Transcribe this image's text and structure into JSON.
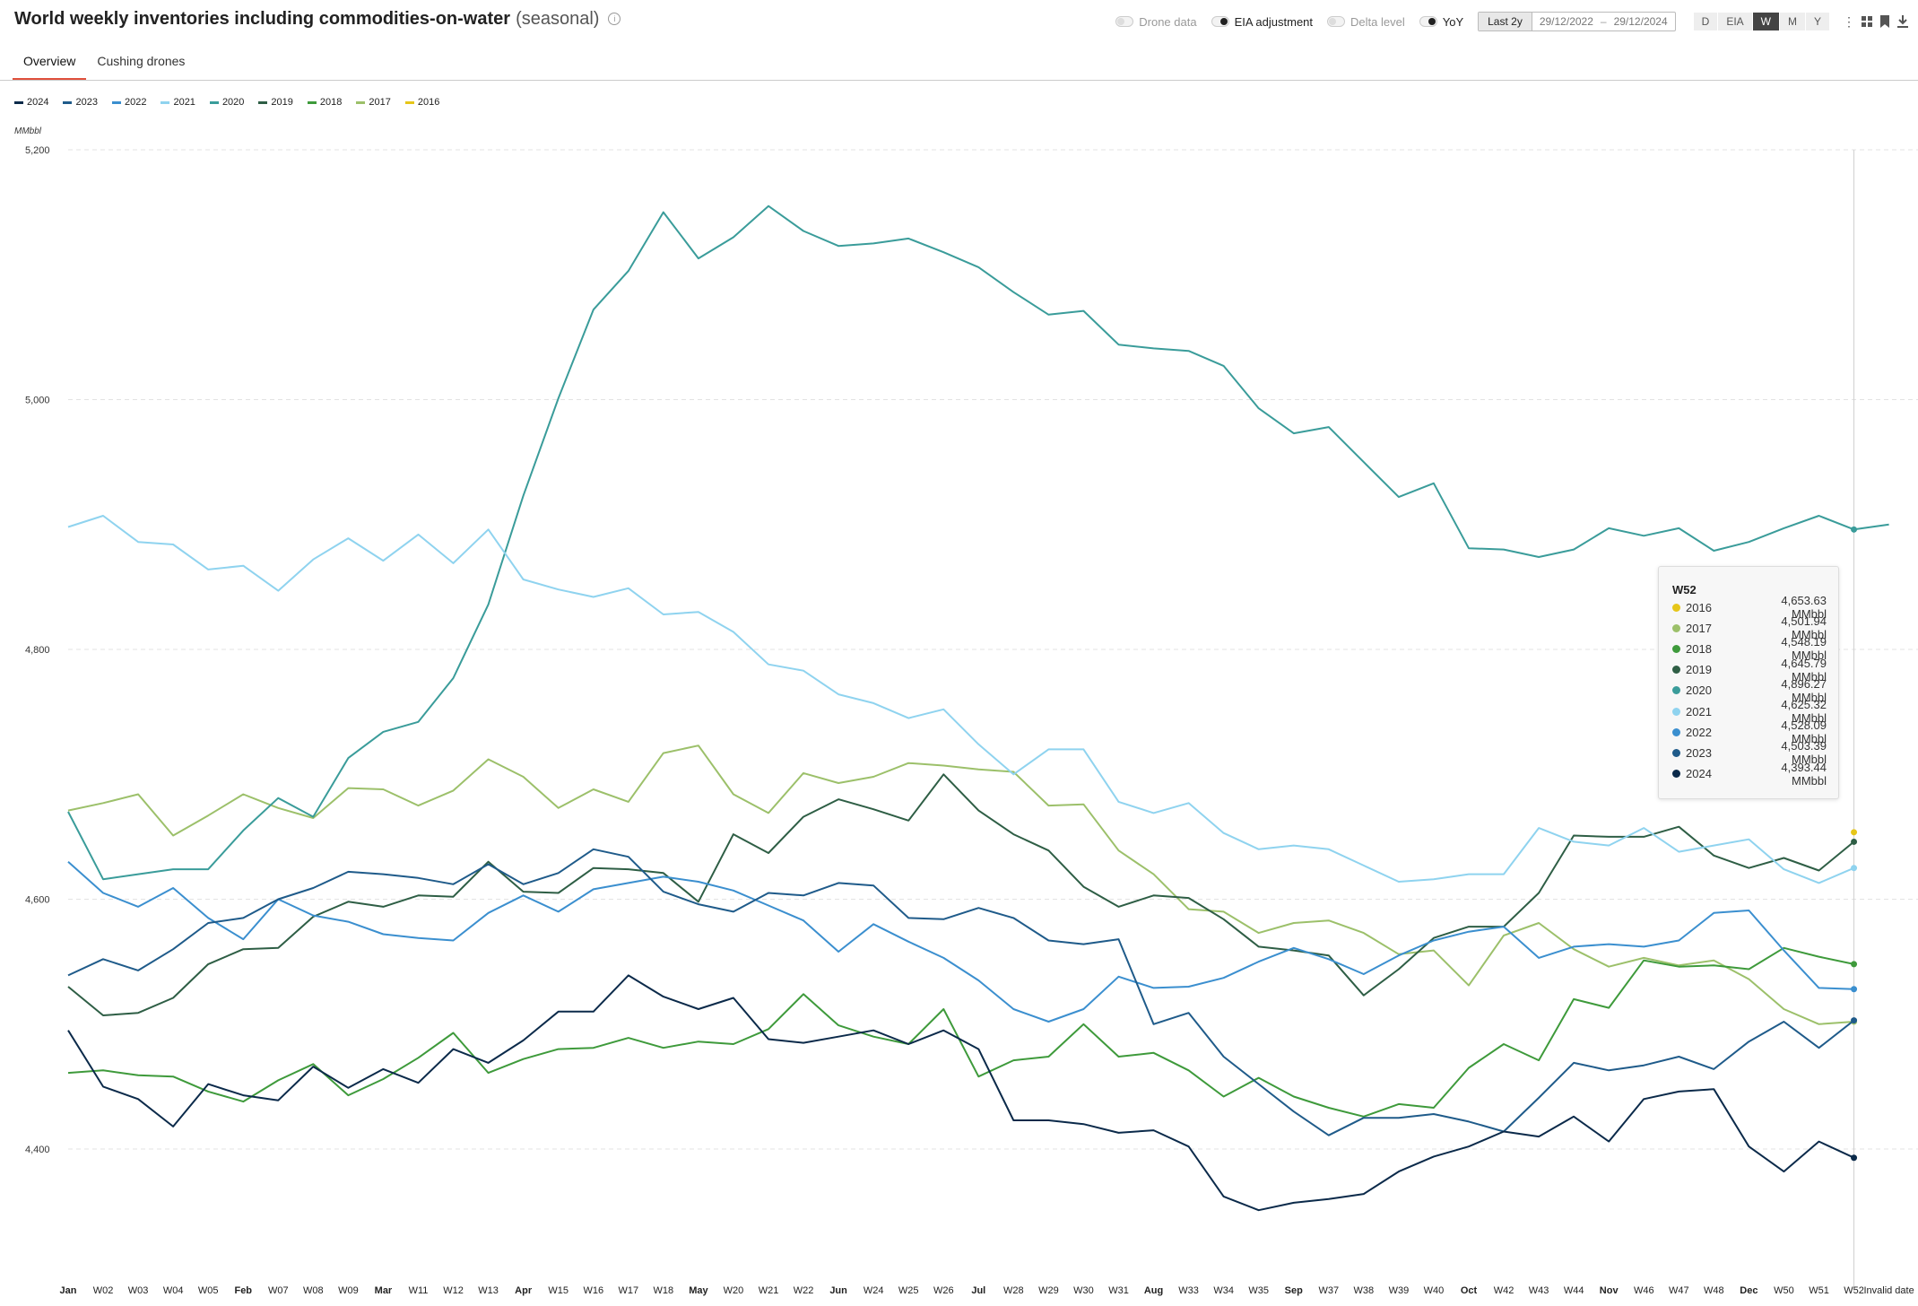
{
  "header": {
    "title": "World weekly inventories including commodities-on-water",
    "subtitle": "(seasonal)",
    "info_icon": "info-icon",
    "toggles": [
      {
        "label": "Drone data",
        "on": false
      },
      {
        "label": "EIA adjustment",
        "on": true
      },
      {
        "label": "Delta level",
        "on": false
      },
      {
        "label": "YoY",
        "on": true
      }
    ],
    "range": {
      "preset": "Last 2y",
      "from": "29/12/2022",
      "sep": "–",
      "to": "29/12/2024"
    },
    "granularity": [
      "D",
      "EIA",
      "W",
      "M",
      "Y"
    ],
    "granularity_active": "W",
    "tools": [
      "more-vertical-icon",
      "grid-icon",
      "bookmark-icon",
      "download-icon"
    ]
  },
  "tabs": [
    {
      "label": "Overview",
      "active": true
    },
    {
      "label": "Cushing drones",
      "active": false
    }
  ],
  "unit": "MMbbl",
  "tooltip": {
    "title": "W52",
    "rows": [
      {
        "year": "2016",
        "value": "4,653.63 MMbbl",
        "color": "#e6c619"
      },
      {
        "year": "2017",
        "value": "4,501.94 MMbbl",
        "color": "#9cc06a"
      },
      {
        "year": "2018",
        "value": "4,548.19 MMbbl",
        "color": "#3e9a3b"
      },
      {
        "year": "2019",
        "value": "4,645.79 MMbbl",
        "color": "#2e5e45"
      },
      {
        "year": "2020",
        "value": "4,896.27 MMbbl",
        "color": "#3a9c9a"
      },
      {
        "year": "2021",
        "value": "4,625.32 MMbbl",
        "color": "#8fd3ef"
      },
      {
        "year": "2022",
        "value": "4,528.09 MMbbl",
        "color": "#3b8fcf"
      },
      {
        "year": "2023",
        "value": "4,503.39 MMbbl",
        "color": "#1f5b8a"
      },
      {
        "year": "2024",
        "value": "4,393.44 MMbbl",
        "color": "#0b2a4a"
      }
    ]
  },
  "chart_data": {
    "type": "line",
    "title": "World weekly inventories including commodities-on-water",
    "ylabel": "MMbbl",
    "ylim": [
      4300,
      5200
    ],
    "yticks": [
      4400,
      4600,
      4800,
      5000,
      5200
    ],
    "ytick_labels": [
      "4,400",
      "4,600",
      "4,800",
      "5,000",
      "5,200"
    ],
    "grid": "horizontal dashed",
    "legend_position": "top-left",
    "categories": [
      "Jan",
      "W02",
      "W03",
      "W04",
      "W05",
      "Feb",
      "W07",
      "W08",
      "W09",
      "Mar",
      "W11",
      "W12",
      "W13",
      "Apr",
      "W15",
      "W16",
      "W17",
      "W18",
      "May",
      "W20",
      "W21",
      "W22",
      "Jun",
      "W24",
      "W25",
      "W26",
      "Jul",
      "W28",
      "W29",
      "W30",
      "W31",
      "Aug",
      "W33",
      "W34",
      "W35",
      "Sep",
      "W37",
      "W38",
      "W39",
      "W40",
      "Oct",
      "W42",
      "W43",
      "W44",
      "Nov",
      "W46",
      "W47",
      "W48",
      "Dec",
      "W50",
      "W51",
      "W52",
      "Invalid date"
    ],
    "bold_categories": [
      "Jan",
      "Feb",
      "Mar",
      "Apr",
      "May",
      "Jun",
      "Jul",
      "Aug",
      "Sep",
      "Oct",
      "Nov",
      "Dec"
    ],
    "series": [
      {
        "name": "2024",
        "color": "#0b2a4a",
        "values": [
          4495,
          4450,
          4440,
          4418,
          4452,
          4443,
          4439,
          4466,
          4449,
          4464,
          4453,
          4480,
          4469,
          4487,
          4510,
          4510,
          4539,
          4522,
          4512,
          4521,
          4488,
          4485,
          4490,
          4495,
          4484,
          4495,
          4480,
          4423,
          4423,
          4420,
          4413,
          4415,
          4402,
          4362,
          4351,
          4357,
          4360,
          4364,
          4382,
          4394,
          4402,
          4414,
          4410,
          4426,
          4406,
          4440,
          4446,
          4448,
          4402,
          4382,
          4406,
          4393,
          null
        ]
      },
      {
        "name": "2023",
        "color": "#1f5b8a",
        "values": [
          4539,
          4552,
          4543,
          4560,
          4581,
          4585,
          4600,
          4609,
          4622,
          4620,
          4617,
          4612,
          4628,
          4612,
          4621,
          4640,
          4634,
          4606,
          4596,
          4590,
          4605,
          4603,
          4613,
          4611,
          4585,
          4584,
          4593,
          4585,
          4567,
          4564,
          4568,
          4500,
          4509,
          4474,
          4452,
          4430,
          4411,
          4425,
          4425,
          4428,
          4422,
          4414,
          4441,
          4469,
          4463,
          4467,
          4474,
          4464,
          4486,
          4502,
          4481,
          4503,
          null
        ]
      },
      {
        "name": "2022",
        "color": "#3b8fcf",
        "values": [
          4630,
          4605,
          4594,
          4609,
          4585,
          4568,
          4600,
          4587,
          4582,
          4572,
          4569,
          4567,
          4589,
          4603,
          4590,
          4608,
          4613,
          4618,
          4614,
          4607,
          4595,
          4583,
          4558,
          4580,
          4566,
          4553,
          4535,
          4512,
          4502,
          4512,
          4538,
          4529,
          4530,
          4537,
          4550,
          4561,
          4552,
          4540,
          4555,
          4567,
          4574,
          4578,
          4553,
          4562,
          4564,
          4562,
          4567,
          4589,
          4591,
          4559,
          4529,
          4528,
          null
        ]
      },
      {
        "name": "2021",
        "color": "#8fd3ef",
        "values": [
          4898,
          4907,
          4886,
          4884,
          4864,
          4867,
          4847,
          4872,
          4889,
          4871,
          4892,
          4869,
          4896,
          4856,
          4848,
          4842,
          4849,
          4828,
          4830,
          4814,
          4788,
          4783,
          4764,
          4757,
          4745,
          4752,
          4724,
          4700,
          4720,
          4720,
          4678,
          4669,
          4677,
          4653,
          4640,
          4643,
          4640,
          4627,
          4614,
          4616,
          4620,
          4620,
          4657,
          4646,
          4643,
          4657,
          4638,
          4643,
          4648,
          4624,
          4613,
          4625,
          null
        ]
      },
      {
        "name": "2020",
        "color": "#3a9c9a",
        "values": [
          4670,
          4616,
          4620,
          4624,
          4624,
          4655,
          4681,
          4666,
          4713,
          4734,
          4742,
          4777,
          4836,
          4923,
          5001,
          5072,
          5103,
          5150,
          5113,
          5130,
          5155,
          5135,
          5123,
          5125,
          5129,
          5118,
          5106,
          5086,
          5068,
          5071,
          5044,
          5041,
          5039,
          5027,
          4993,
          4973,
          4978,
          4950,
          4922,
          4933,
          4881,
          4880,
          4874,
          4880,
          4897,
          4891,
          4897,
          4879,
          4886,
          4897,
          4907,
          4896,
          4900
        ]
      },
      {
        "name": "2019",
        "color": "#2e5e45",
        "values": [
          4530,
          4507,
          4509,
          4521,
          4548,
          4560,
          4561,
          4586,
          4598,
          4594,
          4603,
          4602,
          4630,
          4606,
          4605,
          4625,
          4624,
          4621,
          4598,
          4652,
          4637,
          4666,
          4680,
          4672,
          4663,
          4700,
          4671,
          4652,
          4639,
          4610,
          4594,
          4603,
          4601,
          4584,
          4562,
          4559,
          4555,
          4523,
          4544,
          4569,
          4578,
          4578,
          4605,
          4651,
          4650,
          4650,
          4658,
          4635,
          4625,
          4633,
          4623,
          4646,
          null
        ]
      },
      {
        "name": "2018",
        "color": "#3e9a3b",
        "values": [
          4461,
          4463,
          4459,
          4458,
          4446,
          4438,
          4455,
          4468,
          4443,
          4456,
          4473,
          4493,
          4461,
          4472,
          4480,
          4481,
          4489,
          4481,
          4486,
          4484,
          4496,
          4524,
          4499,
          4490,
          4484,
          4512,
          4458,
          4471,
          4474,
          4500,
          4474,
          4477,
          4463,
          4442,
          4457,
          4442,
          4433,
          4426,
          4436,
          4433,
          4465,
          4484,
          4471,
          4520,
          4513,
          4551,
          4546,
          4547,
          4544,
          4561,
          4554,
          4548,
          null
        ]
      },
      {
        "name": "2017",
        "color": "#9cc06a",
        "values": [
          4671,
          4677,
          4684,
          4651,
          4667,
          4684,
          4673,
          4665,
          4689,
          4688,
          4675,
          4687,
          4712,
          4698,
          4673,
          4688,
          4678,
          4717,
          4723,
          4684,
          4669,
          4701,
          4693,
          4698,
          4709,
          4707,
          4704,
          4702,
          4675,
          4676,
          4639,
          4620,
          4592,
          4590,
          4573,
          4581,
          4583,
          4573,
          4556,
          4559,
          4531,
          4571,
          4581,
          4560,
          4546,
          4553,
          4547,
          4551,
          4536,
          4512,
          4500,
          4502,
          null
        ]
      },
      {
        "name": "2016",
        "color": "#e6c619",
        "values": [
          null,
          null,
          null,
          null,
          null,
          null,
          null,
          null,
          null,
          null,
          null,
          null,
          null,
          null,
          null,
          null,
          null,
          null,
          null,
          null,
          null,
          null,
          null,
          null,
          null,
          null,
          null,
          null,
          null,
          null,
          null,
          null,
          null,
          null,
          null,
          null,
          null,
          null,
          null,
          null,
          null,
          null,
          null,
          null,
          null,
          null,
          null,
          null,
          null,
          null,
          null,
          4653.63,
          null
        ]
      }
    ],
    "highlight_category": "W52"
  }
}
